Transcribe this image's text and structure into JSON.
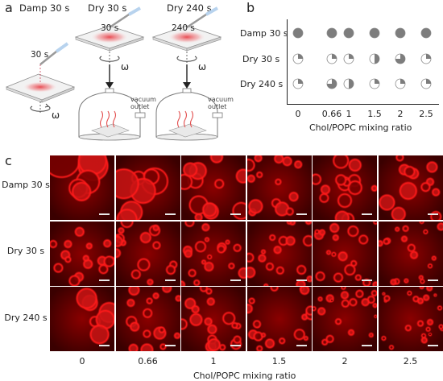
{
  "panel_a": {
    "letter": "a",
    "titles": [
      "Damp 30 s",
      "Dry 30 s",
      "Dry 240 s"
    ],
    "time_labels": [
      "30 s",
      "30 s",
      "240 s"
    ],
    "omega": "ω",
    "vacuum_label_line1": "vacuum",
    "vacuum_label_line2": "outlet"
  },
  "panel_b": {
    "letter": "b",
    "rows": [
      "Damp 30 s",
      "Dry 30 s",
      "Dry 240 s"
    ],
    "x_ticks": [
      "0",
      "0.66",
      "1",
      "1.5",
      "2",
      "2.5"
    ],
    "x_label": "Chol/POPC mixing ratio"
  },
  "panel_c": {
    "letter": "c",
    "rows": [
      "Damp 30 s",
      "Dry 30 s",
      "Dry 240 s"
    ],
    "x_ticks": [
      "0",
      "0.66",
      "1",
      "1.5",
      "2",
      "2.5"
    ],
    "x_label": "Chol/POPC mixing ratio"
  },
  "chart_data": {
    "type": "table",
    "rows": [
      "Damp 30 s",
      "Dry 30 s",
      "Dry 240 s"
    ],
    "columns": [
      "0",
      "0.66",
      "1",
      "1.5",
      "2",
      "2.5"
    ],
    "fill_fraction": [
      [
        1,
        1,
        1,
        1,
        1,
        1
      ],
      [
        0.25,
        0.25,
        0.25,
        0.5,
        0.75,
        0.25
      ],
      [
        0.25,
        0.75,
        0.5,
        0.25,
        0.25,
        0.25
      ]
    ],
    "x_label": "Chol/POPC mixing ratio",
    "colors": {
      "filled": "#7d7d7d",
      "empty": "#ffffff",
      "outline": "#8a8a8a"
    }
  },
  "colors": {
    "micro_dark": "#3a0000",
    "micro_bright": "#ff1a1a"
  }
}
